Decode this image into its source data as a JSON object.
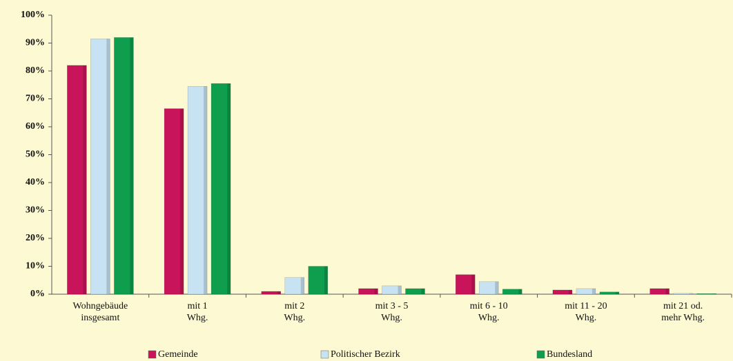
{
  "chart_data": {
    "type": "bar",
    "categories": [
      [
        "Wohngebäude",
        "insgesamt"
      ],
      [
        "mit 1",
        "Whg."
      ],
      [
        "mit 2",
        "Whg."
      ],
      [
        "mit 3 - 5",
        "Whg."
      ],
      [
        "mit 6 - 10",
        "Whg."
      ],
      [
        "mit 11 - 20",
        "Whg."
      ],
      [
        "mit 21 od.",
        "mehr Whg."
      ]
    ],
    "series": [
      {
        "name": "Gemeinde",
        "color": "#c8145a",
        "values": [
          82,
          66.5,
          1,
          2,
          7,
          1.5,
          2
        ]
      },
      {
        "name": "Politischer Bezirk",
        "color": "#c6e2f3",
        "values": [
          91.5,
          74.5,
          6,
          3,
          4.5,
          2,
          0.3
        ]
      },
      {
        "name": "Bundesland",
        "color": "#0e9e4e",
        "values": [
          92,
          75.5,
          10,
          2,
          1.8,
          0.8,
          0.2
        ]
      }
    ],
    "ylim": [
      0,
      100
    ],
    "yticks": [
      {
        "value": 0,
        "label": "0%"
      },
      {
        "value": 10,
        "label": "10%"
      },
      {
        "value": 20,
        "label": "20%"
      },
      {
        "value": 30,
        "label": "30%"
      },
      {
        "value": 40,
        "label": "40%"
      },
      {
        "value": 50,
        "label": "50%"
      },
      {
        "value": 60,
        "label": "60%"
      },
      {
        "value": 70,
        "label": "70%"
      },
      {
        "value": 80,
        "label": "80%"
      },
      {
        "value": 90,
        "label": "90%"
      },
      {
        "value": 100,
        "label": "100%"
      }
    ],
    "legend": "bottom"
  }
}
